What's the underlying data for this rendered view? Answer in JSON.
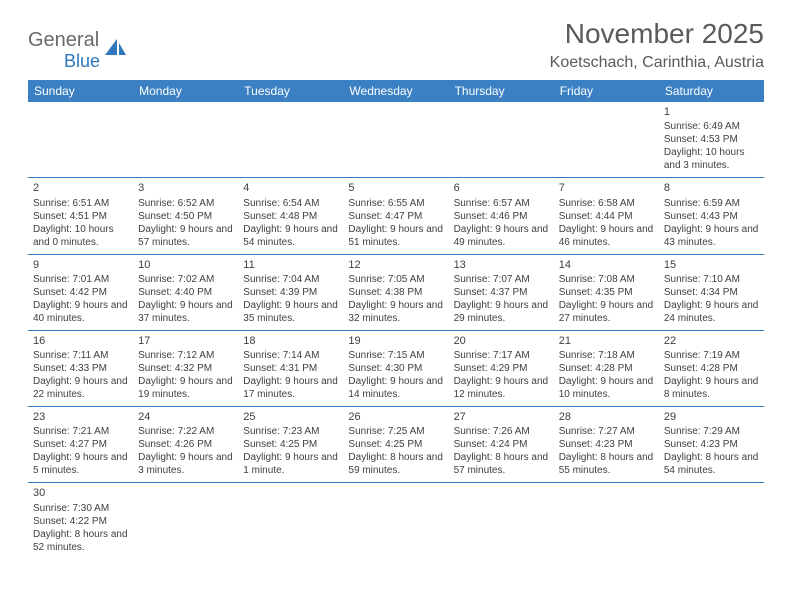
{
  "brand": {
    "part1": "General",
    "part2": "Blue"
  },
  "title": "November 2025",
  "location": "Koetschach, Carinthia, Austria",
  "colors": {
    "header_bg": "#3a80c3",
    "header_text": "#ffffff",
    "border": "#2f78bd",
    "body_text": "#404040",
    "title_text": "#5a5a5a",
    "logo_gray": "#6a6a6a",
    "logo_blue": "#2f78bd",
    "background": "#ffffff"
  },
  "typography": {
    "month_title_pt": 28,
    "location_pt": 16,
    "weekday_pt": 12,
    "daynum_pt": 11,
    "cell_pt": 10
  },
  "weekdays": [
    "Sunday",
    "Monday",
    "Tuesday",
    "Wednesday",
    "Thursday",
    "Friday",
    "Saturday"
  ],
  "grid": {
    "start_weekday_index": 6,
    "rows": 6,
    "cols": 7
  },
  "days": [
    {
      "n": 1,
      "sunrise": "6:49 AM",
      "sunset": "4:53 PM",
      "daylight": "10 hours and 3 minutes."
    },
    {
      "n": 2,
      "sunrise": "6:51 AM",
      "sunset": "4:51 PM",
      "daylight": "10 hours and 0 minutes."
    },
    {
      "n": 3,
      "sunrise": "6:52 AM",
      "sunset": "4:50 PM",
      "daylight": "9 hours and 57 minutes."
    },
    {
      "n": 4,
      "sunrise": "6:54 AM",
      "sunset": "4:48 PM",
      "daylight": "9 hours and 54 minutes."
    },
    {
      "n": 5,
      "sunrise": "6:55 AM",
      "sunset": "4:47 PM",
      "daylight": "9 hours and 51 minutes."
    },
    {
      "n": 6,
      "sunrise": "6:57 AM",
      "sunset": "4:46 PM",
      "daylight": "9 hours and 49 minutes."
    },
    {
      "n": 7,
      "sunrise": "6:58 AM",
      "sunset": "4:44 PM",
      "daylight": "9 hours and 46 minutes."
    },
    {
      "n": 8,
      "sunrise": "6:59 AM",
      "sunset": "4:43 PM",
      "daylight": "9 hours and 43 minutes."
    },
    {
      "n": 9,
      "sunrise": "7:01 AM",
      "sunset": "4:42 PM",
      "daylight": "9 hours and 40 minutes."
    },
    {
      "n": 10,
      "sunrise": "7:02 AM",
      "sunset": "4:40 PM",
      "daylight": "9 hours and 37 minutes."
    },
    {
      "n": 11,
      "sunrise": "7:04 AM",
      "sunset": "4:39 PM",
      "daylight": "9 hours and 35 minutes."
    },
    {
      "n": 12,
      "sunrise": "7:05 AM",
      "sunset": "4:38 PM",
      "daylight": "9 hours and 32 minutes."
    },
    {
      "n": 13,
      "sunrise": "7:07 AM",
      "sunset": "4:37 PM",
      "daylight": "9 hours and 29 minutes."
    },
    {
      "n": 14,
      "sunrise": "7:08 AM",
      "sunset": "4:35 PM",
      "daylight": "9 hours and 27 minutes."
    },
    {
      "n": 15,
      "sunrise": "7:10 AM",
      "sunset": "4:34 PM",
      "daylight": "9 hours and 24 minutes."
    },
    {
      "n": 16,
      "sunrise": "7:11 AM",
      "sunset": "4:33 PM",
      "daylight": "9 hours and 22 minutes."
    },
    {
      "n": 17,
      "sunrise": "7:12 AM",
      "sunset": "4:32 PM",
      "daylight": "9 hours and 19 minutes."
    },
    {
      "n": 18,
      "sunrise": "7:14 AM",
      "sunset": "4:31 PM",
      "daylight": "9 hours and 17 minutes."
    },
    {
      "n": 19,
      "sunrise": "7:15 AM",
      "sunset": "4:30 PM",
      "daylight": "9 hours and 14 minutes."
    },
    {
      "n": 20,
      "sunrise": "7:17 AM",
      "sunset": "4:29 PM",
      "daylight": "9 hours and 12 minutes."
    },
    {
      "n": 21,
      "sunrise": "7:18 AM",
      "sunset": "4:28 PM",
      "daylight": "9 hours and 10 minutes."
    },
    {
      "n": 22,
      "sunrise": "7:19 AM",
      "sunset": "4:28 PM",
      "daylight": "9 hours and 8 minutes."
    },
    {
      "n": 23,
      "sunrise": "7:21 AM",
      "sunset": "4:27 PM",
      "daylight": "9 hours and 5 minutes."
    },
    {
      "n": 24,
      "sunrise": "7:22 AM",
      "sunset": "4:26 PM",
      "daylight": "9 hours and 3 minutes."
    },
    {
      "n": 25,
      "sunrise": "7:23 AM",
      "sunset": "4:25 PM",
      "daylight": "9 hours and 1 minute."
    },
    {
      "n": 26,
      "sunrise": "7:25 AM",
      "sunset": "4:25 PM",
      "daylight": "8 hours and 59 minutes."
    },
    {
      "n": 27,
      "sunrise": "7:26 AM",
      "sunset": "4:24 PM",
      "daylight": "8 hours and 57 minutes."
    },
    {
      "n": 28,
      "sunrise": "7:27 AM",
      "sunset": "4:23 PM",
      "daylight": "8 hours and 55 minutes."
    },
    {
      "n": 29,
      "sunrise": "7:29 AM",
      "sunset": "4:23 PM",
      "daylight": "8 hours and 54 minutes."
    },
    {
      "n": 30,
      "sunrise": "7:30 AM",
      "sunset": "4:22 PM",
      "daylight": "8 hours and 52 minutes."
    }
  ],
  "labels": {
    "sunrise": "Sunrise:",
    "sunset": "Sunset:",
    "daylight": "Daylight:"
  }
}
